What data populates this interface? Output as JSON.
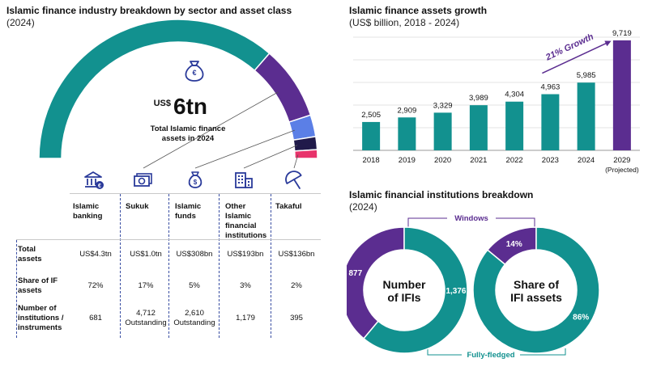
{
  "left_panel": {
    "title": "Islamic finance industry breakdown by sector and asset class",
    "subtitle": "(2024)",
    "center_prefix": "US$",
    "center_value": "6tn",
    "center_caption_line1": "Total Islamic finance",
    "center_caption_line2": "assets in 2024",
    "segments": [
      {
        "name": "Islamic banking",
        "share": 72,
        "color": "#12918f"
      },
      {
        "name": "Sukuk",
        "share": 17,
        "color": "#5b2d90"
      },
      {
        "name": "Islamic funds",
        "share": 5,
        "color": "#5b7fe6"
      },
      {
        "name": "Other Islamic financial institutions",
        "share": 3,
        "color": "#201a4a"
      },
      {
        "name": "Takaful",
        "share": 2,
        "color": "#e8336b"
      }
    ],
    "icons": [
      "bank-icon",
      "banknote-icon",
      "money-bag-icon",
      "office-building-icon",
      "umbrella-icon"
    ],
    "columns": [
      {
        "lines": [
          "Islamic",
          "banking"
        ]
      },
      {
        "lines": [
          "Sukuk"
        ]
      },
      {
        "lines": [
          "Islamic",
          "funds"
        ]
      },
      {
        "lines": [
          "Other",
          "Islamic",
          "financial",
          "institutions"
        ]
      },
      {
        "lines": [
          "Takaful"
        ]
      }
    ],
    "rows": [
      {
        "label_lines": [
          "Total",
          "assets"
        ],
        "values": [
          [
            "US$4.3tn"
          ],
          [
            "US$1.0tn"
          ],
          [
            "US$308bn"
          ],
          [
            "US$193bn"
          ],
          [
            "US$136bn"
          ]
        ]
      },
      {
        "label_lines": [
          "Share of IF",
          "assets"
        ],
        "values": [
          [
            "72%"
          ],
          [
            "17%"
          ],
          [
            "5%"
          ],
          [
            "3%"
          ],
          [
            "2%"
          ]
        ]
      },
      {
        "label_lines": [
          "Number of",
          "institutions /",
          "instruments"
        ],
        "values": [
          [
            "681"
          ],
          [
            "4,712",
            "Outstanding"
          ],
          [
            "2,610",
            "Outstanding"
          ],
          [
            "1,179"
          ],
          [
            "395"
          ]
        ]
      }
    ]
  },
  "chart_data": [
    {
      "type": "bar",
      "title": "Islamic finance assets growth",
      "subtitle": "(US$ billion, 2018 - 2024)",
      "categories": [
        "2018",
        "2019",
        "2020",
        "2021",
        "2022",
        "2023",
        "2024",
        "2029"
      ],
      "category_sublabels": [
        "",
        "",
        "",
        "",
        "",
        "",
        "",
        "(Projected)"
      ],
      "values": [
        2505,
        2909,
        3329,
        3989,
        4304,
        4963,
        5985,
        9719
      ],
      "value_labels": [
        "2,505",
        "2,909",
        "3,329",
        "3,989",
        "4,304",
        "4,963",
        "5,985",
        "9,719"
      ],
      "colors": [
        "#12918f",
        "#12918f",
        "#12918f",
        "#12918f",
        "#12918f",
        "#12918f",
        "#12918f",
        "#5b2d90"
      ],
      "annotation": "21% Growth",
      "ylim": [
        0,
        10000
      ],
      "grid": true
    },
    {
      "type": "pie",
      "title": "Islamic financial institutions breakdown",
      "subtitle": "(2024)",
      "donuts": [
        {
          "center_lines": [
            "Number",
            "of IFIs"
          ],
          "slices": [
            {
              "label": "877",
              "value": 877,
              "color": "#5b2d90"
            },
            {
              "label": "1,376",
              "value": 1376,
              "color": "#12918f"
            }
          ]
        },
        {
          "center_lines": [
            "Share of",
            "IFI assets"
          ],
          "slices": [
            {
              "label": "14%",
              "value": 14,
              "color": "#5b2d90"
            },
            {
              "label": "86%",
              "value": 86,
              "color": "#12918f"
            }
          ]
        }
      ],
      "top_label": "Windows",
      "bottom_label": "Fully-fledged"
    }
  ]
}
